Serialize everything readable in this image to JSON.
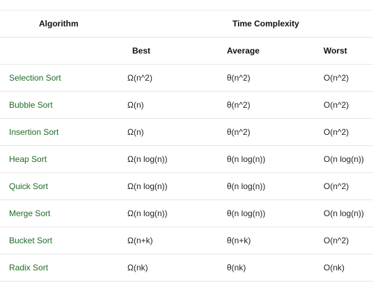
{
  "headers": {
    "algorithm": "Algorithm",
    "time_complexity": "Time Complexity",
    "best": "Best",
    "average": "Average",
    "worst": "Worst"
  },
  "rows": [
    {
      "name": "Selection Sort",
      "best": "Ω(n^2)",
      "average": "θ(n^2)",
      "worst": "O(n^2)"
    },
    {
      "name": "Bubble Sort",
      "best": "Ω(n)",
      "average": "θ(n^2)",
      "worst": "O(n^2)"
    },
    {
      "name": "Insertion Sort",
      "best": "Ω(n)",
      "average": "θ(n^2)",
      "worst": "O(n^2)"
    },
    {
      "name": "Heap Sort",
      "best": "Ω(n log(n))",
      "average": "θ(n log(n))",
      "worst": "O(n log(n))"
    },
    {
      "name": "Quick Sort",
      "best": "Ω(n log(n))",
      "average": "θ(n log(n))",
      "worst": "O(n^2)"
    },
    {
      "name": "Merge Sort",
      "best": "Ω(n log(n))",
      "average": "θ(n log(n))",
      "worst": "O(n log(n))"
    },
    {
      "name": "Bucket Sort",
      "best": "Ω(n+k)",
      "average": "θ(n+k)",
      "worst": "O(n^2)"
    },
    {
      "name": "Radix Sort",
      "best": "Ω(nk)",
      "average": "θ(nk)",
      "worst": "O(nk)"
    }
  ],
  "colors": {
    "algorithm_name": "#1e6b24",
    "border": "#e6e6e6"
  }
}
